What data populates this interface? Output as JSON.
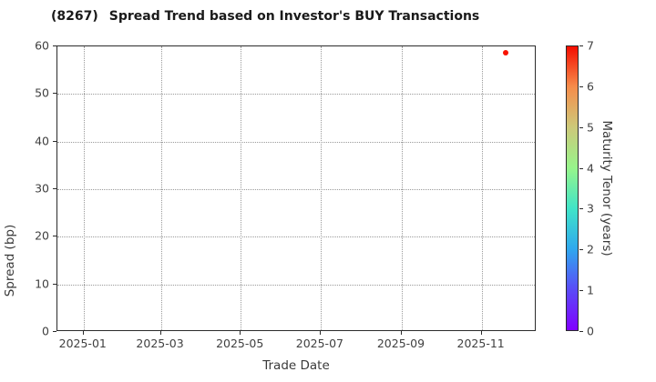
{
  "chart_data": {
    "type": "scatter",
    "title": "(8267)  Spread Trend based on Investor's BUY Transactions",
    "title_code": "(8267)",
    "title_text": "Spread Trend based on Investor's BUY Transactions",
    "xlabel": "Trade Date",
    "ylabel": "Spread (bp)",
    "xlim": [
      "2024-12-12",
      "2025-12-13"
    ],
    "ylim": [
      0,
      60
    ],
    "x_ticks": [
      {
        "date": "2025-01-01",
        "label": "2025-01"
      },
      {
        "date": "2025-03-01",
        "label": "2025-03"
      },
      {
        "date": "2025-05-01",
        "label": "2025-05"
      },
      {
        "date": "2025-07-01",
        "label": "2025-07"
      },
      {
        "date": "2025-09-01",
        "label": "2025-09"
      },
      {
        "date": "2025-11-01",
        "label": "2025-11"
      }
    ],
    "y_ticks": [
      0,
      10,
      20,
      30,
      40,
      50,
      60
    ],
    "grid": true,
    "grid_style": "dotted",
    "legend": "none",
    "points": [
      {
        "date": "2025-11-20",
        "spread_bp": 58.5,
        "maturity_tenor_years": 7.0
      }
    ],
    "point_color": "#f81200",
    "colorbar": {
      "label": "Maturity Tenor (years)",
      "min": 0,
      "max": 7,
      "ticks": [
        0,
        1,
        2,
        3,
        4,
        5,
        6,
        7
      ],
      "colormap": "rainbow",
      "gradient_stops": [
        "#8000ff",
        "#5a4bf7",
        "#2fa8ee",
        "#40e4c8",
        "#97f58b",
        "#cdc97a",
        "#f68d4b",
        "#f40d00"
      ]
    },
    "colors": {
      "background": "#ffffff",
      "spine": "#2b2b2b",
      "gridline": "#9a9a9a",
      "tick_label": "#404040",
      "title": "#1a1a1a"
    }
  }
}
